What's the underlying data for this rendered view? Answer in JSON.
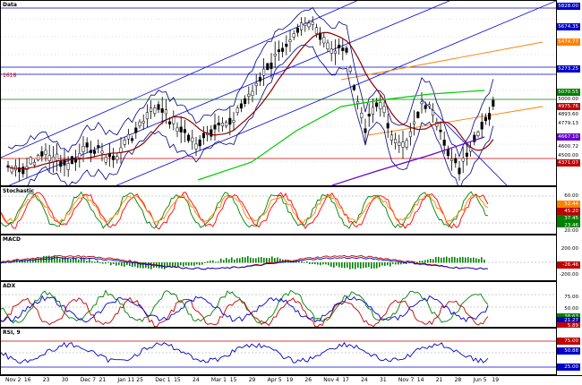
{
  "panes": {
    "price": {
      "title": "Data",
      "note": "1618"
    },
    "stoch": {
      "title": "Stochastic"
    },
    "macd": {
      "title": "MACD"
    },
    "adx": {
      "title": "ADX"
    },
    "rsi": {
      "title": "RSI, 9"
    }
  },
  "price_axis": [
    {
      "text": "5828.00",
      "bg": "#0000cc",
      "fg": "#ffffff"
    },
    {
      "text": "5674.35",
      "bg": "#0000cc",
      "fg": "#ffffff"
    },
    {
      "text": "5474.77",
      "bg": "#ff8000",
      "fg": "#ffffff"
    },
    {
      "text": "5273.25",
      "bg": "#0000cc",
      "fg": "#ffffff"
    },
    {
      "text": "5070.55",
      "bg": "#008000",
      "fg": "#ffffff"
    },
    {
      "text": "5000.00",
      "bg": "#ffffff",
      "fg": "#000000"
    },
    {
      "text": "4975.76",
      "bg": "#c00000",
      "fg": "#ffffff"
    },
    {
      "text": "4893.60",
      "bg": "#ffffff",
      "fg": "#000000"
    },
    {
      "text": "4779.13",
      "bg": "#ffffff",
      "fg": "#000000"
    },
    {
      "text": "4667.10",
      "bg": "#6600cc",
      "fg": "#ffffff"
    },
    {
      "text": "4600.72",
      "bg": "#ffffff",
      "fg": "#000000"
    },
    {
      "text": "4500.00",
      "bg": "#ffffff",
      "fg": "#000000"
    },
    {
      "text": "4371.07",
      "bg": "#c00000",
      "fg": "#ffffff"
    }
  ],
  "stoch_axis": [
    {
      "text": "60.00",
      "bg": "#ffffff",
      "fg": "#000000"
    },
    {
      "text": "52.44",
      "bg": "#ff8000",
      "fg": "#ffffff"
    },
    {
      "text": "45.20",
      "bg": "#c00000",
      "fg": "#ffffff"
    },
    {
      "text": "37.45",
      "bg": "#008000",
      "fg": "#ffffff"
    },
    {
      "text": "23.46",
      "bg": "#008000",
      "fg": "#ffffff"
    },
    {
      "text": "20.00",
      "bg": "#ffffff",
      "fg": "#000000"
    }
  ],
  "macd_axis": [
    {
      "text": "200.00",
      "bg": "#ffffff",
      "fg": "#000000"
    },
    {
      "text": "-26.46",
      "bg": "#c00000",
      "fg": "#ffffff"
    },
    {
      "text": "-200.00",
      "bg": "#ffffff",
      "fg": "#000000"
    }
  ],
  "adx_axis": [
    {
      "text": "75.00",
      "bg": "#ffffff",
      "fg": "#000000"
    },
    {
      "text": "50.00",
      "bg": "#ffffff",
      "fg": "#000000"
    },
    {
      "text": "38.63",
      "bg": "#008000",
      "fg": "#ffffff"
    },
    {
      "text": "21.27",
      "bg": "#0000cc",
      "fg": "#ffffff"
    },
    {
      "text": "5.89",
      "bg": "#c00000",
      "fg": "#ffffff"
    }
  ],
  "rsi_axis": [
    {
      "text": "75.00",
      "bg": "#c00000",
      "fg": "#ffffff"
    },
    {
      "text": "50.88",
      "bg": "#0000cc",
      "fg": "#ffffff"
    },
    {
      "text": "25.00",
      "bg": "#0000cc",
      "fg": "#ffffff"
    }
  ],
  "dates": [
    "Nov 2",
    "16",
    "23",
    "30",
    "Dec 7",
    "21",
    "Jan 11",
    "25",
    "Dec 1",
    "15",
    "24",
    "Mar 1",
    "15",
    "29",
    "Apr 5",
    "19",
    "26",
    "Nov 4",
    "17",
    "24",
    "31",
    "Nov 7",
    "14",
    "21",
    "28",
    "Jun 5",
    "19"
  ],
  "colors": {
    "price_candles": "#000000",
    "ma_red": "#8b0000",
    "ma_green": "#00cc00",
    "ma_purple": "#6600cc",
    "channel_blue": "#0000cc",
    "fib_orange": "#ff8000",
    "bollinger": "#000080",
    "stoch_k": "#ff0000",
    "stoch_d": "#008000",
    "stoch_slow": "#ff8000",
    "macd_line": "#c00000",
    "macd_signal": "#0000cc",
    "macd_hist": "#008000",
    "adx_plus": "#008000",
    "adx_minus": "#c00000",
    "adx": "#0000cc",
    "rsi": "#0000cc"
  }
}
